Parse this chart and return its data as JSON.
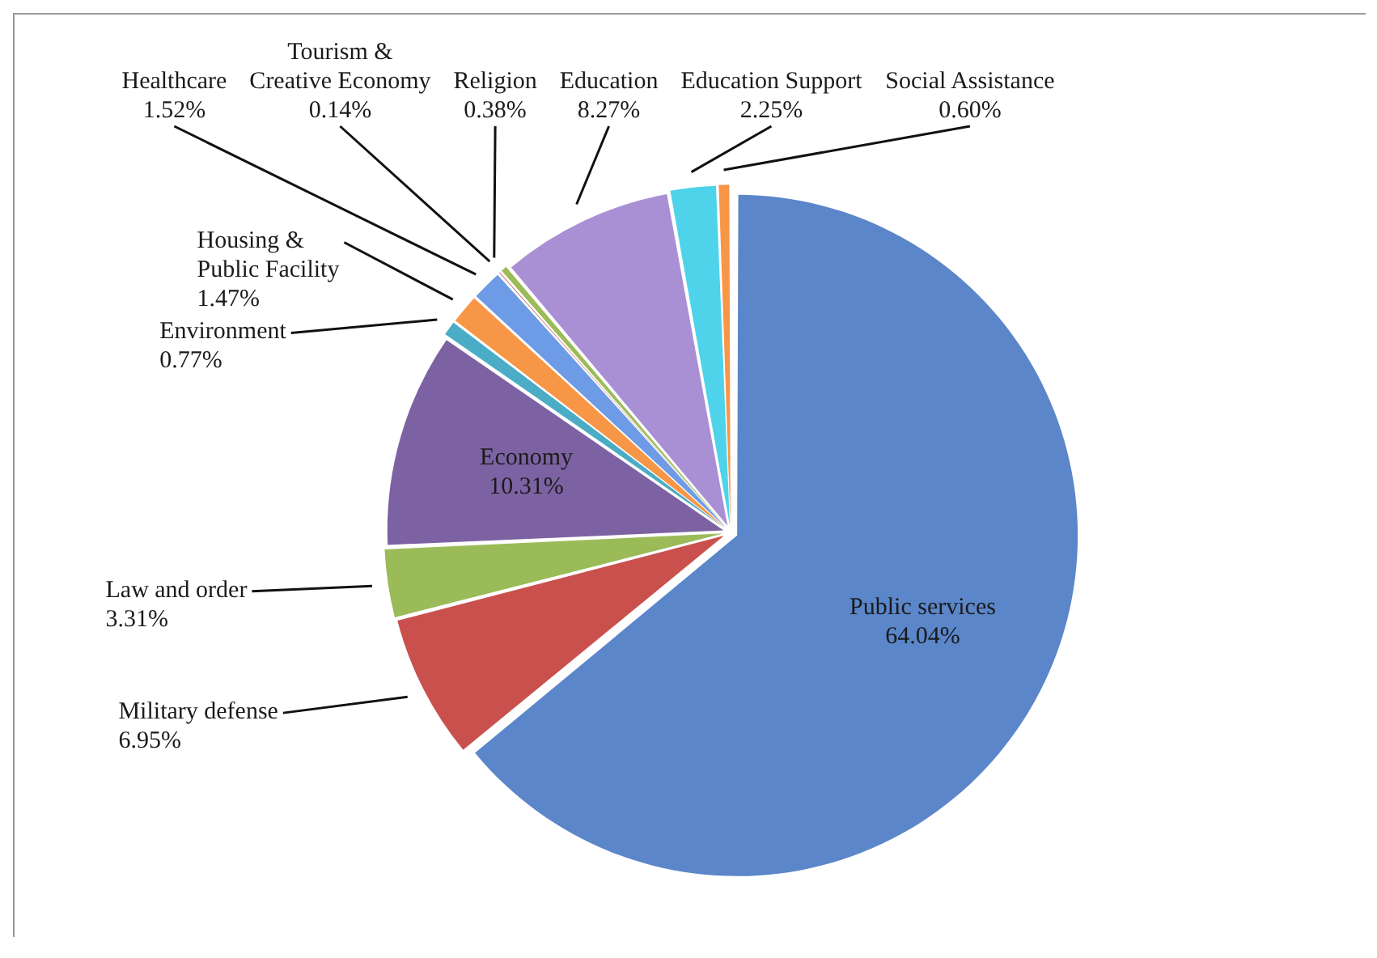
{
  "chart_data": {
    "type": "pie",
    "categories": [
      "Public services",
      "Military defense",
      "Law and order",
      "Economy",
      "Environment",
      "Housing & Public Facility",
      "Healthcare",
      "Tourism & Creative Economy",
      "Religion",
      "Education",
      "Education Support",
      "Social Assistance"
    ],
    "values": [
      64.04,
      6.95,
      3.31,
      10.31,
      0.77,
      1.47,
      1.52,
      0.14,
      0.38,
      8.27,
      2.25,
      0.6
    ],
    "colors": [
      "#5b86c9",
      "#c9504d",
      "#9bbb59",
      "#7d62a3",
      "#4bacc6",
      "#f79646",
      "#6d9be6",
      "#c0504d",
      "#9bbb59",
      "#a98fd4",
      "#4fd3ea",
      "#f79646"
    ],
    "value_labels": [
      "64.04%",
      "6.95%",
      "3.31%",
      "10.31%",
      "0.77%",
      "1.47%",
      "1.52%",
      "0.14%",
      "0.38%",
      "8.27%",
      "2.25%",
      "0.60%"
    ]
  }
}
